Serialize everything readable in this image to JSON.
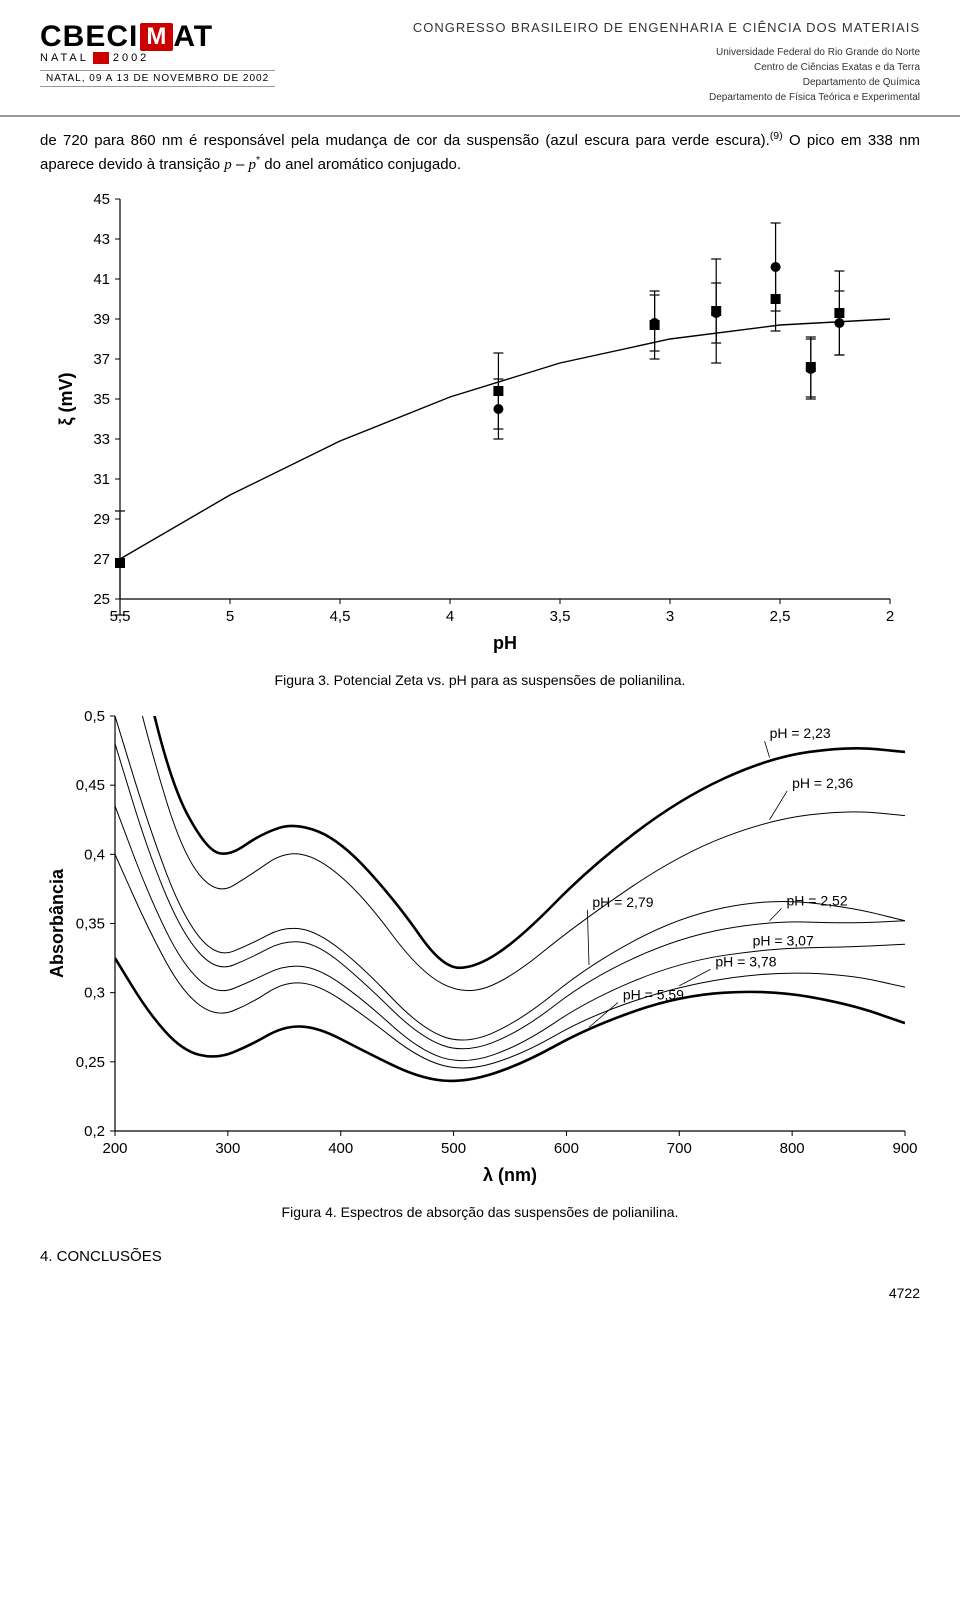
{
  "header": {
    "logo_main": "CBECI",
    "logo_m": "M",
    "logo_at": "AT",
    "logo_sub": "NATAL",
    "logo_year": "2002",
    "date_bar": "NATAL, 09 A 13 DE NOVEMBRO DE 2002",
    "congress_title": "CONGRESSO BRASILEIRO DE ENGENHARIA E CIÊNCIA DOS MATERIAIS",
    "affil1": "Universidade Federal do Rio Grande do Norte",
    "affil2": "Centro de Ciências Exatas e da Terra",
    "affil3": "Departamento de Química",
    "affil4": "Departamento de Física Teórica e Experimental"
  },
  "paragraph": {
    "text_pre": "de 720 para 860 nm é responsável pela mudança de cor da suspensão (azul escura para verde escura).",
    "ref": "(9)",
    "text_mid": " O pico em 338 nm aparece devido à transição ",
    "formula_p1": "p",
    "formula_dash": " – ",
    "formula_p2": "p",
    "formula_star": "*",
    "text_post": " do anel aromático conjugado."
  },
  "fig3": {
    "caption": "Figura 3. Potencial Zeta vs. pH para as suspensões de polianilina.",
    "ylabel": "ξ (mV)",
    "xlabel": "pH",
    "font_axis": 15,
    "font_label": 18,
    "xlim": [
      5.5,
      2.0
    ],
    "ylim": [
      25,
      45
    ],
    "yticks": [
      25,
      27,
      29,
      31,
      33,
      35,
      37,
      39,
      41,
      43,
      45
    ],
    "xticks": [
      5.5,
      5.0,
      4.5,
      4.0,
      3.5,
      3.0,
      2.5,
      2.0
    ],
    "xticklabels": [
      "5,5",
      "5",
      "4,5",
      "4",
      "3,5",
      "3",
      "2,5",
      "2"
    ],
    "points_square": [
      {
        "x": 5.5,
        "y": 26.8,
        "err": 2.6
      },
      {
        "x": 3.78,
        "y": 35.4,
        "err": 1.9
      },
      {
        "x": 3.07,
        "y": 38.7,
        "err": 1.7
      },
      {
        "x": 2.79,
        "y": 39.4,
        "err": 2.6
      },
      {
        "x": 2.52,
        "y": 40.0,
        "err": 1.6
      },
      {
        "x": 2.36,
        "y": 36.6,
        "err": 1.5
      },
      {
        "x": 2.23,
        "y": 39.3,
        "err": 2.1
      }
    ],
    "points_circle": [
      {
        "x": 3.78,
        "y": 34.5,
        "err": 1.5
      },
      {
        "x": 3.07,
        "y": 38.8,
        "err": 1.4
      },
      {
        "x": 2.79,
        "y": 39.3,
        "err": 1.5
      },
      {
        "x": 2.52,
        "y": 41.6,
        "err": 2.2
      },
      {
        "x": 2.36,
        "y": 36.5,
        "err": 1.5
      },
      {
        "x": 2.23,
        "y": 38.8,
        "err": 1.6
      }
    ],
    "fit_curve": [
      {
        "x": 5.5,
        "y": 27.0
      },
      {
        "x": 5.0,
        "y": 30.2
      },
      {
        "x": 4.5,
        "y": 32.9
      },
      {
        "x": 4.0,
        "y": 35.1
      },
      {
        "x": 3.5,
        "y": 36.8
      },
      {
        "x": 3.0,
        "y": 38.0
      },
      {
        "x": 2.5,
        "y": 38.7
      },
      {
        "x": 2.0,
        "y": 39.0
      }
    ],
    "colors": {
      "axis": "#000000",
      "marker": "#000000",
      "line": "#000000",
      "bg": "#ffffff"
    }
  },
  "fig4": {
    "caption": "Figura 4. Espectros de absorção das suspensões de polianilina.",
    "ylabel": "Absorbância",
    "xlabel": "λ (nm)",
    "font_axis": 15,
    "font_label": 18,
    "xlim": [
      200,
      900
    ],
    "ylim": [
      0.2,
      0.5
    ],
    "xticks": [
      200,
      300,
      400,
      500,
      600,
      700,
      800,
      900
    ],
    "yticks": [
      0.2,
      0.25,
      0.3,
      0.35,
      0.4,
      0.45,
      0.5
    ],
    "yticklabels": [
      "0,2",
      "0,25",
      "0,3",
      "0,35",
      "0,4",
      "0,45",
      "0,5"
    ],
    "curves": [
      {
        "label": "pH = 2,23",
        "label_x": 780,
        "label_y": 0.484,
        "stroke_width": 2.6,
        "pts": [
          [
            200,
            0.62
          ],
          [
            220,
            0.55
          ],
          [
            250,
            0.45
          ],
          [
            280,
            0.405
          ],
          [
            300,
            0.398
          ],
          [
            330,
            0.415
          ],
          [
            360,
            0.423
          ],
          [
            400,
            0.41
          ],
          [
            450,
            0.365
          ],
          [
            490,
            0.318
          ],
          [
            520,
            0.318
          ],
          [
            560,
            0.34
          ],
          [
            620,
            0.39
          ],
          [
            700,
            0.44
          ],
          [
            780,
            0.47
          ],
          [
            850,
            0.478
          ],
          [
            900,
            0.474
          ]
        ]
      },
      {
        "label": "pH = 2,36",
        "label_x": 800,
        "label_y": 0.448,
        "stroke_width": 1.0,
        "pts": [
          [
            200,
            0.58
          ],
          [
            230,
            0.48
          ],
          [
            260,
            0.4
          ],
          [
            290,
            0.37
          ],
          [
            320,
            0.385
          ],
          [
            350,
            0.402
          ],
          [
            380,
            0.398
          ],
          [
            420,
            0.37
          ],
          [
            470,
            0.315
          ],
          [
            510,
            0.298
          ],
          [
            550,
            0.31
          ],
          [
            610,
            0.35
          ],
          [
            700,
            0.4
          ],
          [
            780,
            0.425
          ],
          [
            850,
            0.432
          ],
          [
            900,
            0.428
          ]
        ]
      },
      {
        "label": "pH = 2,79",
        "label_x": 623,
        "label_y": 0.362,
        "stroke_width": 1.0,
        "pts": [
          [
            200,
            0.5
          ],
          [
            230,
            0.42
          ],
          [
            260,
            0.355
          ],
          [
            290,
            0.325
          ],
          [
            320,
            0.335
          ],
          [
            350,
            0.348
          ],
          [
            380,
            0.344
          ],
          [
            420,
            0.318
          ],
          [
            470,
            0.275
          ],
          [
            510,
            0.262
          ],
          [
            560,
            0.28
          ],
          [
            620,
            0.32
          ],
          [
            700,
            0.355
          ],
          [
            780,
            0.368
          ],
          [
            850,
            0.362
          ],
          [
            900,
            0.352
          ]
        ]
      },
      {
        "label": "pH = 2,52",
        "label_x": 795,
        "label_y": 0.363,
        "stroke_width": 1.0,
        "pts": [
          [
            200,
            0.48
          ],
          [
            230,
            0.4
          ],
          [
            260,
            0.342
          ],
          [
            290,
            0.315
          ],
          [
            320,
            0.325
          ],
          [
            350,
            0.338
          ],
          [
            380,
            0.335
          ],
          [
            420,
            0.308
          ],
          [
            470,
            0.268
          ],
          [
            510,
            0.256
          ],
          [
            560,
            0.272
          ],
          [
            620,
            0.31
          ],
          [
            700,
            0.34
          ],
          [
            780,
            0.352
          ],
          [
            850,
            0.35
          ],
          [
            900,
            0.352
          ]
        ]
      },
      {
        "label": "pH = 3,07",
        "label_x": 765,
        "label_y": 0.334,
        "stroke_width": 1.0,
        "pts": [
          [
            200,
            0.435
          ],
          [
            230,
            0.37
          ],
          [
            260,
            0.32
          ],
          [
            290,
            0.298
          ],
          [
            320,
            0.308
          ],
          [
            350,
            0.32
          ],
          [
            380,
            0.318
          ],
          [
            420,
            0.295
          ],
          [
            470,
            0.258
          ],
          [
            510,
            0.248
          ],
          [
            560,
            0.262
          ],
          [
            620,
            0.295
          ],
          [
            700,
            0.322
          ],
          [
            780,
            0.332
          ],
          [
            850,
            0.333
          ],
          [
            900,
            0.335
          ]
        ]
      },
      {
        "label": "pH = 3,78",
        "label_x": 732,
        "label_y": 0.319,
        "stroke_width": 1.0,
        "pts": [
          [
            200,
            0.4
          ],
          [
            230,
            0.345
          ],
          [
            260,
            0.3
          ],
          [
            290,
            0.282
          ],
          [
            320,
            0.292
          ],
          [
            350,
            0.308
          ],
          [
            380,
            0.306
          ],
          [
            420,
            0.284
          ],
          [
            470,
            0.252
          ],
          [
            510,
            0.243
          ],
          [
            560,
            0.255
          ],
          [
            620,
            0.283
          ],
          [
            700,
            0.305
          ],
          [
            780,
            0.315
          ],
          [
            850,
            0.313
          ],
          [
            900,
            0.304
          ]
        ]
      },
      {
        "label": "pH = 5,59",
        "label_x": 650,
        "label_y": 0.295,
        "stroke_width": 2.6,
        "pts": [
          [
            200,
            0.325
          ],
          [
            230,
            0.285
          ],
          [
            260,
            0.258
          ],
          [
            290,
            0.252
          ],
          [
            320,
            0.262
          ],
          [
            350,
            0.276
          ],
          [
            380,
            0.275
          ],
          [
            420,
            0.258
          ],
          [
            470,
            0.238
          ],
          [
            510,
            0.235
          ],
          [
            560,
            0.248
          ],
          [
            620,
            0.275
          ],
          [
            700,
            0.298
          ],
          [
            780,
            0.302
          ],
          [
            850,
            0.292
          ],
          [
            900,
            0.278
          ]
        ]
      }
    ],
    "colors": {
      "axis": "#000000",
      "line": "#000000",
      "bg": "#ffffff"
    }
  },
  "section_title": "4. CONCLUSÕES",
  "pagenum": "4722"
}
